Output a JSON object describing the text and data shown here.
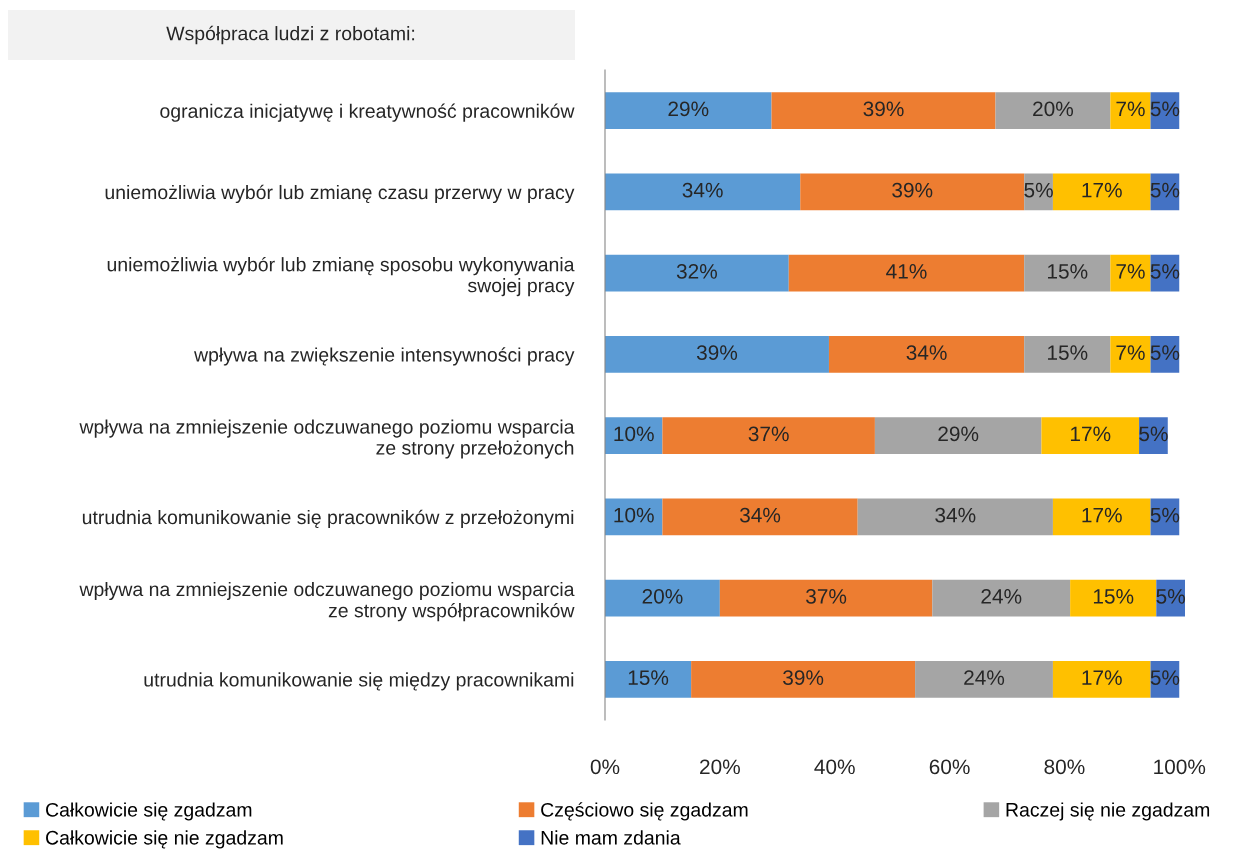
{
  "chart_data": {
    "type": "bar",
    "orientation": "horizontal",
    "stacked": true,
    "title": "Współpraca ludzi z robotami:",
    "categories": [
      "ogranicza inicjatywę i kreatywność pracowników",
      "uniemożliwia wybór lub zmianę czasu przerwy w pracy",
      "uniemożliwia wybór lub zmianę sposobu wykonywania\nswojej pracy",
      "wpływa na zwiększenie intensywności pracy",
      "wpływa na zmniejszenie odczuwanego poziomu wsparcia\nze strony przełożonych",
      "utrudnia komunikowanie się pracowników z przełożonymi",
      "wpływa na zmniejszenie odczuwanego poziomu wsparcia\nze strony współpracowników",
      "utrudnia komunikowanie się między pracownikami"
    ],
    "series": [
      {
        "name": "Całkowicie się zgadzam",
        "color": "#5b9bd5",
        "values": [
          29,
          34,
          32,
          39,
          10,
          10,
          20,
          15
        ],
        "value_labels": [
          "29%",
          "34%",
          "32%",
          "39%",
          "10%",
          "10%",
          "20%",
          "15%"
        ]
      },
      {
        "name": "Częściowo się zgadzam",
        "color": "#ed7d31",
        "values": [
          39,
          39,
          41,
          34,
          37,
          34,
          37,
          39
        ],
        "value_labels": [
          "39%",
          "39%",
          "41%",
          "34%",
          "37%",
          "34%",
          "37%",
          "39%"
        ]
      },
      {
        "name": "Raczej się nie zgadzam",
        "color": "#a5a5a5",
        "values": [
          20,
          5,
          15,
          15,
          29,
          34,
          24,
          24
        ],
        "value_labels": [
          "20%",
          "5%",
          "15%",
          "15%",
          "29%",
          "34%",
          "24%",
          "24%"
        ]
      },
      {
        "name": "Całkowicie się nie zgadzam",
        "color": "#ffc000",
        "values": [
          7,
          17,
          7,
          7,
          17,
          17,
          15,
          17
        ],
        "value_labels": [
          "7%",
          "17%",
          "7%",
          "7%",
          "17%",
          "17%",
          "15%",
          "17%"
        ]
      },
      {
        "name": "Nie mam zdania",
        "color": "#4472c4",
        "values": [
          5,
          5,
          5,
          5,
          5,
          5,
          5,
          5
        ],
        "value_labels": [
          "5%",
          "5%",
          "5%",
          "5%",
          "5%",
          "5%",
          "5%",
          "5%"
        ]
      }
    ],
    "xlim": [
      0,
      101
    ],
    "xticks": [
      {
        "value": 0,
        "label": "0%"
      },
      {
        "value": 20,
        "label": "20%"
      },
      {
        "value": 40,
        "label": "40%"
      },
      {
        "value": 60,
        "label": "60%"
      },
      {
        "value": 80,
        "label": "80%"
      },
      {
        "value": 100,
        "label": "100%"
      }
    ],
    "grid": false,
    "legend": "bottom"
  }
}
